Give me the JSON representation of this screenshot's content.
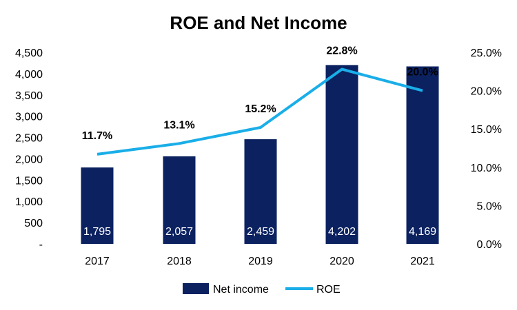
{
  "chart_data": {
    "type": "bar+line",
    "title": "ROE and Net Income",
    "categories": [
      "2017",
      "2018",
      "2019",
      "2020",
      "2021"
    ],
    "series": [
      {
        "name": "Net income",
        "type": "bar",
        "axis": "left",
        "color": "#0b2160",
        "values": [
          1795,
          2057,
          2459,
          4202,
          4169
        ],
        "labels": [
          "1,795",
          "2,057",
          "2,459",
          "4,202",
          "4,169"
        ]
      },
      {
        "name": "ROE",
        "type": "line",
        "axis": "right",
        "color": "#1aaee8",
        "values": [
          11.7,
          13.1,
          15.2,
          22.8,
          20.0
        ],
        "labels": [
          "11.7%",
          "13.1%",
          "15.2%",
          "22.8%",
          "20.0%"
        ]
      }
    ],
    "left_axis": {
      "ylim": [
        0,
        4500
      ],
      "ticks": [
        0,
        500,
        1000,
        1500,
        2000,
        2500,
        3000,
        3500,
        4000,
        4500
      ],
      "tick_labels": [
        "-",
        "500",
        "1,000",
        "1,500",
        "2,000",
        "2,500",
        "3,000",
        "3,500",
        "4,000",
        "4,500"
      ]
    },
    "right_axis": {
      "ylim": [
        0,
        25
      ],
      "ticks": [
        0,
        5,
        10,
        15,
        20,
        25
      ],
      "tick_labels": [
        "0.0%",
        "5.0%",
        "10.0%",
        "15.0%",
        "20.0%",
        "25.0%"
      ]
    },
    "grid": false,
    "legend_position": "bottom"
  }
}
